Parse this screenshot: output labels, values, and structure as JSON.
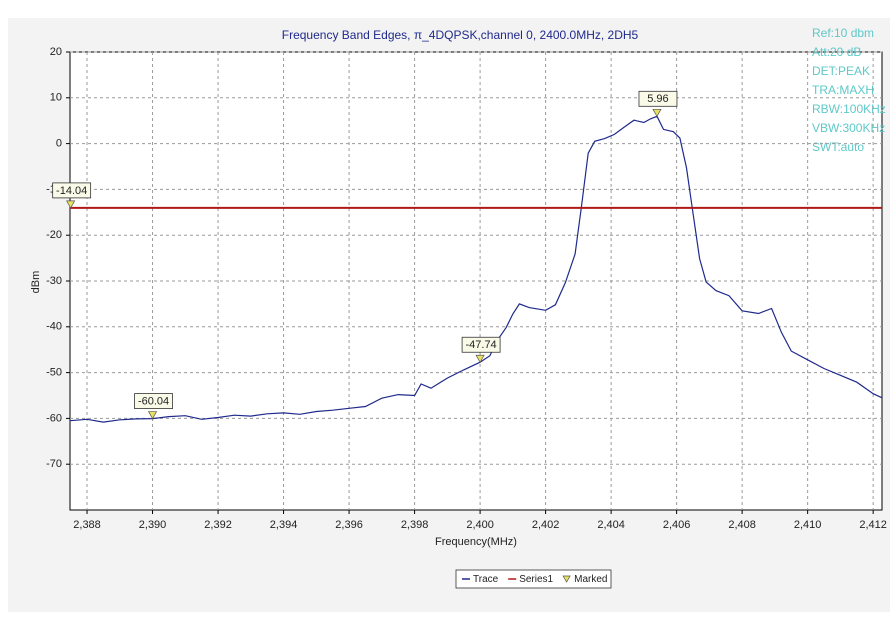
{
  "chart_data": {
    "type": "line",
    "title": "Frequency Band Edges, π_4DQPSK,channel 0, 2400.0MHz, 2DH5",
    "x_label": "Frequency(MHz)",
    "y_label": "dBm",
    "annotations": [
      "Ref:10 dbm",
      "Att:20 dB",
      "DET:PEAK",
      "TRA:MAXH",
      "RBW:100KHz",
      "VBW:300KHz",
      "SWT:auto"
    ],
    "xlim": [
      2387.48,
      2412.27
    ],
    "ylim": [
      -80,
      20
    ],
    "xticks": [
      {
        "value": 2388,
        "label": "2,388"
      },
      {
        "value": 2390,
        "label": "2,390"
      },
      {
        "value": 2392,
        "label": "2,392"
      },
      {
        "value": 2394,
        "label": "2,394"
      },
      {
        "value": 2396,
        "label": "2,396"
      },
      {
        "value": 2398,
        "label": "2,398"
      },
      {
        "value": 2400,
        "label": "2,400"
      },
      {
        "value": 2402,
        "label": "2,402"
      },
      {
        "value": 2404,
        "label": "2,404"
      },
      {
        "value": 2406,
        "label": "2,406"
      },
      {
        "value": 2408,
        "label": "2,408"
      },
      {
        "value": 2410,
        "label": "2,410"
      },
      {
        "value": 2412,
        "label": "2,412"
      }
    ],
    "yticks": [
      20,
      10,
      0,
      -10,
      -20,
      -30,
      -40,
      -50,
      -60,
      -70
    ],
    "grid": true,
    "legend": "bottom",
    "series": [
      {
        "name": "Trace",
        "color": "#1f2a8c",
        "x": [
          2387.48,
          2388,
          2388.5,
          2389,
          2389.5,
          2390,
          2390.5,
          2391,
          2391.5,
          2392,
          2392.5,
          2393,
          2393.5,
          2394,
          2394.5,
          2395,
          2395.5,
          2396,
          2396.5,
          2397,
          2397.5,
          2398,
          2398.2,
          2398.5,
          2399,
          2399.5,
          2400,
          2400.3,
          2400.5,
          2400.8,
          2401,
          2401.2,
          2401.5,
          2402,
          2402.3,
          2402.6,
          2402.9,
          2403.1,
          2403.3,
          2403.5,
          2403.8,
          2404.1,
          2404.4,
          2404.7,
          2405,
          2405.2,
          2405.4,
          2405.6,
          2405.9,
          2406.1,
          2406.3,
          2406.5,
          2406.7,
          2406.9,
          2407.2,
          2407.6,
          2408,
          2408.5,
          2408.9,
          2409.2,
          2409.5,
          2410,
          2410.5,
          2411,
          2411.5,
          2412,
          2412.27
        ],
        "values": [
          -60.5,
          -60.2,
          -60.8,
          -60.3,
          -60.1,
          -60.04,
          -59.6,
          -59.4,
          -60.2,
          -59.8,
          -59.3,
          -59.5,
          -59,
          -58.8,
          -59.1,
          -58.5,
          -58.2,
          -57.8,
          -57.4,
          -55.6,
          -54.8,
          -55,
          -52.5,
          -53.4,
          -51.2,
          -49.4,
          -47.74,
          -46.3,
          -43.2,
          -40.1,
          -37.2,
          -35,
          -35.8,
          -36.4,
          -35.2,
          -30.4,
          -24.1,
          -13.5,
          -2.1,
          0.5,
          1.1,
          2,
          3.6,
          5.1,
          4.6,
          5.4,
          5.96,
          3.1,
          2.6,
          1.2,
          -5.3,
          -15.2,
          -25.1,
          -30.2,
          -32.1,
          -33.2,
          -36.5,
          -37.1,
          -36,
          -41.2,
          -45.3,
          -47.2,
          -49.1,
          -50.6,
          -52.1,
          -54.6,
          -55.5
        ]
      },
      {
        "name": "Series1",
        "color": "#b01818",
        "x": [
          2387.48,
          2412.27
        ],
        "values": [
          -14.04,
          -14.04
        ]
      },
      {
        "name": "Marked",
        "color": "#e8e060",
        "x": [
          2387.5,
          2390,
          2400,
          2405.4
        ],
        "values": [
          -14.04,
          -60.04,
          -47.74,
          5.96
        ]
      }
    ]
  }
}
